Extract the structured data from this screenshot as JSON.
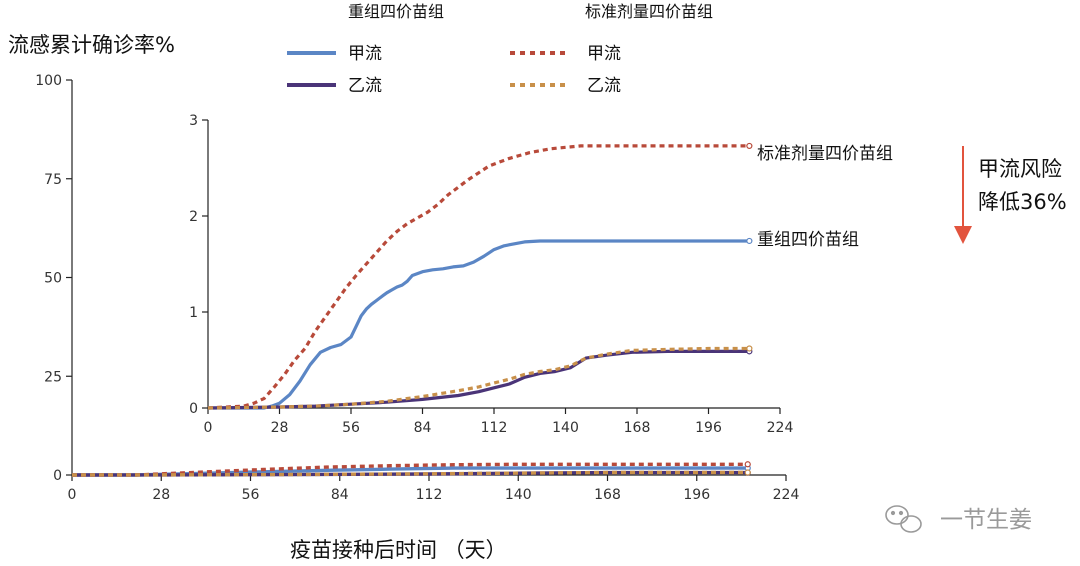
{
  "chart_data": [
    {
      "type": "line",
      "role": "main",
      "ylabel": "流感累计确诊率%",
      "xlabel": "疫苗接种后时间 （天）",
      "xlim": [
        0,
        224
      ],
      "ylim": [
        0,
        100
      ],
      "xticks": [
        0,
        28,
        56,
        84,
        112,
        140,
        168,
        196,
        224
      ],
      "yticks": [
        0,
        25,
        50,
        75,
        100
      ],
      "series": [
        {
          "name": "重组四价苗组 甲流",
          "style": "solid",
          "color": "#5b86c5",
          "x": [
            0,
            20,
            40,
            60,
            80,
            100,
            120,
            140,
            212
          ],
          "y": [
            0,
            0,
            0.4,
            0.8,
            1.2,
            1.5,
            1.75,
            1.75,
            1.75
          ]
        },
        {
          "name": "重组四价苗组 乙流",
          "style": "solid",
          "color": "#4a3478",
          "x": [
            0,
            28,
            70,
            112,
            140,
            168,
            212
          ],
          "y": [
            0,
            0.02,
            0.1,
            0.25,
            0.45,
            0.6,
            0.6
          ]
        },
        {
          "name": "标准剂量四价苗组 甲流",
          "style": "dotted",
          "color": "#b84a3a",
          "x": [
            0,
            20,
            40,
            60,
            80,
            100,
            120,
            140,
            212
          ],
          "y": [
            0,
            0,
            0.7,
            1.4,
            2.0,
            2.35,
            2.6,
            2.72,
            2.72
          ]
        },
        {
          "name": "标准剂量四价苗组 乙流",
          "style": "dotted",
          "color": "#c8904a",
          "x": [
            0,
            28,
            70,
            112,
            140,
            168,
            212
          ],
          "y": [
            0,
            0.02,
            0.12,
            0.3,
            0.48,
            0.63,
            0.63
          ]
        }
      ]
    },
    {
      "type": "line",
      "role": "inset",
      "xlim": [
        0,
        224
      ],
      "ylim": [
        0,
        3
      ],
      "xticks": [
        0,
        28,
        56,
        84,
        112,
        140,
        168,
        196,
        224
      ],
      "yticks": [
        0,
        1,
        2,
        3
      ],
      "series": [
        {
          "name": "重组四价苗组 甲流",
          "style": "solid",
          "color": "#5b86c5",
          "x": [
            0,
            22,
            25,
            28,
            32,
            36,
            40,
            44,
            48,
            52,
            56,
            58,
            60,
            62,
            64,
            66,
            68,
            70,
            72,
            74,
            76,
            78,
            80,
            84,
            88,
            92,
            96,
            100,
            104,
            108,
            112,
            116,
            120,
            124,
            130,
            140,
            160,
            180,
            200,
            212
          ],
          "y": [
            0,
            0,
            0.02,
            0.05,
            0.14,
            0.28,
            0.45,
            0.58,
            0.63,
            0.66,
            0.74,
            0.85,
            0.96,
            1.03,
            1.08,
            1.12,
            1.16,
            1.2,
            1.23,
            1.26,
            1.28,
            1.32,
            1.38,
            1.42,
            1.44,
            1.45,
            1.47,
            1.48,
            1.52,
            1.58,
            1.65,
            1.69,
            1.71,
            1.73,
            1.74,
            1.74,
            1.74,
            1.74,
            1.74,
            1.74
          ]
        },
        {
          "name": "重组四价苗组 乙流",
          "style": "solid",
          "color": "#4a3478",
          "x": [
            0,
            28,
            42,
            56,
            70,
            84,
            98,
            106,
            112,
            118,
            124,
            130,
            136,
            142,
            148,
            156,
            166,
            180,
            196,
            212
          ],
          "y": [
            0,
            0.01,
            0.02,
            0.04,
            0.06,
            0.09,
            0.13,
            0.17,
            0.21,
            0.25,
            0.32,
            0.36,
            0.38,
            0.42,
            0.52,
            0.55,
            0.58,
            0.59,
            0.59,
            0.59
          ]
        },
        {
          "name": "标准剂量四价苗组 甲流",
          "style": "dotted",
          "color": "#b84a3a",
          "x": [
            0,
            14,
            18,
            22,
            26,
            30,
            34,
            38,
            42,
            46,
            50,
            54,
            58,
            62,
            66,
            70,
            74,
            78,
            82,
            86,
            90,
            94,
            98,
            102,
            106,
            110,
            114,
            118,
            122,
            126,
            130,
            134,
            138,
            142,
            146,
            150,
            160,
            180,
            200,
            212
          ],
          "y": [
            0,
            0.02,
            0.05,
            0.1,
            0.22,
            0.35,
            0.5,
            0.62,
            0.8,
            0.95,
            1.1,
            1.25,
            1.38,
            1.5,
            1.62,
            1.74,
            1.84,
            1.92,
            1.98,
            2.04,
            2.12,
            2.22,
            2.3,
            2.38,
            2.45,
            2.52,
            2.56,
            2.6,
            2.63,
            2.66,
            2.68,
            2.7,
            2.71,
            2.72,
            2.73,
            2.73,
            2.73,
            2.73,
            2.73,
            2.73
          ]
        },
        {
          "name": "标准剂量四价苗组 乙流",
          "style": "dotted",
          "color": "#c8904a",
          "x": [
            0,
            28,
            42,
            56,
            70,
            84,
            98,
            106,
            112,
            118,
            124,
            130,
            136,
            142,
            148,
            156,
            166,
            180,
            196,
            212
          ],
          "y": [
            0,
            0.01,
            0.02,
            0.04,
            0.07,
            0.12,
            0.18,
            0.22,
            0.26,
            0.3,
            0.35,
            0.38,
            0.4,
            0.44,
            0.52,
            0.56,
            0.6,
            0.61,
            0.62,
            0.62
          ]
        }
      ]
    }
  ],
  "legend": {
    "group1_title": "重组四价苗组",
    "group2_title": "标准剂量四价苗组",
    "flu_a": "甲流",
    "flu_b": "乙流"
  },
  "end_labels": {
    "standard": "标准剂量四价苗组",
    "recombinant": "重组四价苗组"
  },
  "annotation": {
    "line1": "甲流风险",
    "line2": "降低36%",
    "arrow_color": "#e2543e"
  },
  "watermark": "一节生姜"
}
